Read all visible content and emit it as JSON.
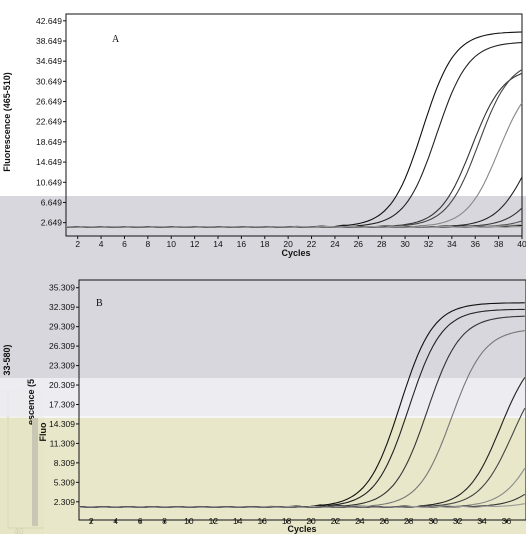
{
  "figure": {
    "type": "composite-screenshot",
    "panels": 2
  },
  "chart_data": [
    {
      "type": "line",
      "panel_label": "A",
      "xlabel": "Cycles",
      "ylabel": "Fluorescence (465-510)",
      "xlim": [
        1,
        40
      ],
      "ylim": [
        0,
        44
      ],
      "x_ticks": [
        2,
        4,
        6,
        8,
        10,
        12,
        14,
        16,
        18,
        20,
        22,
        24,
        26,
        28,
        30,
        32,
        34,
        36,
        38,
        40
      ],
      "y_ticks": [
        2.649,
        6.649,
        10.649,
        14.649,
        18.649,
        22.649,
        26.649,
        30.649,
        34.649,
        38.649,
        42.649
      ],
      "y_tick_labels": [
        "2.649",
        "6.649",
        "10.649",
        "14.649",
        "18.649",
        "22.649",
        "26.649",
        "30.649",
        "34.649",
        "38.649",
        "42.649"
      ],
      "grid": false,
      "series": [
        {
          "color": "#111111",
          "ct": 27.0,
          "plateau": 40.5,
          "baseline": 1.8
        },
        {
          "color": "#222222",
          "ct": 28.2,
          "plateau": 38.5,
          "baseline": 1.8
        },
        {
          "color": "#333333",
          "ct": 31.2,
          "plateau": 33.5,
          "baseline": 1.8
        },
        {
          "color": "#444444",
          "ct": 31.8,
          "plateau": 35.0,
          "baseline": 1.8
        },
        {
          "color": "#888888",
          "ct": 33.5,
          "plateau": 32.0,
          "baseline": 1.8
        },
        {
          "color": "#222222",
          "ct": 36.0,
          "plateau": 26.0,
          "baseline": 1.8
        },
        {
          "color": "#333333",
          "ct": 37.5,
          "plateau": 22.0,
          "baseline": 1.8
        },
        {
          "color": "#555555",
          "ct": 38.5,
          "plateau": 14.0,
          "baseline": 1.8
        },
        {
          "color": "#aaaaaa",
          "ct": 39.0,
          "plateau": 10.0,
          "baseline": 1.8
        },
        {
          "color": "#222222",
          "ct": 39.5,
          "plateau": 8.0,
          "baseline": 1.8
        },
        {
          "color": "#777777",
          "ct": 41.0,
          "plateau": 6.0,
          "baseline": 1.8
        },
        {
          "color": "#999999",
          "ct": 42.0,
          "plateau": 5.0,
          "baseline": 1.8
        }
      ]
    },
    {
      "type": "line",
      "panel_label": "B",
      "xlabel": "Cycles",
      "ylabel": "Fluorescence (533-580)",
      "ylabel_fragments": [
        "33-580)",
        "escence (5",
        "Fluo"
      ],
      "xlim": [
        1,
        37.6
      ],
      "ylim": [
        -0.5,
        36.5
      ],
      "x_ticks": [
        2,
        4,
        6,
        8,
        10,
        12,
        14,
        16,
        18,
        20,
        22,
        24,
        26,
        28,
        30,
        32,
        34,
        36
      ],
      "x_tick_labels": [
        "2",
        "4",
        "6",
        "8",
        "10",
        "12",
        "14",
        "16",
        "18",
        "20",
        "22",
        "24",
        "26",
        "28",
        "30",
        "32",
        "34",
        "36"
      ],
      "y_ticks": [
        2.309,
        5.309,
        8.309,
        11.309,
        14.309,
        17.309,
        20.309,
        23.309,
        26.309,
        29.309,
        32.309,
        35.309
      ],
      "y_tick_labels": [
        "2.309",
        "5.309",
        "8.309",
        "11.309",
        "14.309",
        "17.309",
        "20.309",
        "23.309",
        "26.309",
        "29.309",
        "32.309",
        "35.309"
      ],
      "grid": false,
      "series": [
        {
          "color": "#111111",
          "ct": 22.8,
          "plateau": 33.0,
          "baseline": 1.5
        },
        {
          "color": "#222222",
          "ct": 23.5,
          "plateau": 32.0,
          "baseline": 1.5
        },
        {
          "color": "#333333",
          "ct": 25.0,
          "plateau": 31.0,
          "baseline": 1.5
        },
        {
          "color": "#777777",
          "ct": 27.0,
          "plateau": 29.0,
          "baseline": 1.5
        },
        {
          "color": "#222222",
          "ct": 31.0,
          "plateau": 26.0,
          "baseline": 1.5
        },
        {
          "color": "#444444",
          "ct": 32.0,
          "plateau": 24.0,
          "baseline": 1.5
        },
        {
          "color": "#888888",
          "ct": 34.0,
          "plateau": 20.0,
          "baseline": 1.5
        },
        {
          "color": "#333333",
          "ct": 35.5,
          "plateau": 16.0,
          "baseline": 1.5
        },
        {
          "color": "#999999",
          "ct": 37.0,
          "plateau": 12.0,
          "baseline": 1.5
        }
      ]
    }
  ],
  "underlying_panel": {
    "x_tick_labels": [
      "40"
    ]
  },
  "colors": {
    "gray_overlay": "#d2d0d8",
    "yellow_overlay": "#e6e4c4",
    "axis": "#111111"
  }
}
